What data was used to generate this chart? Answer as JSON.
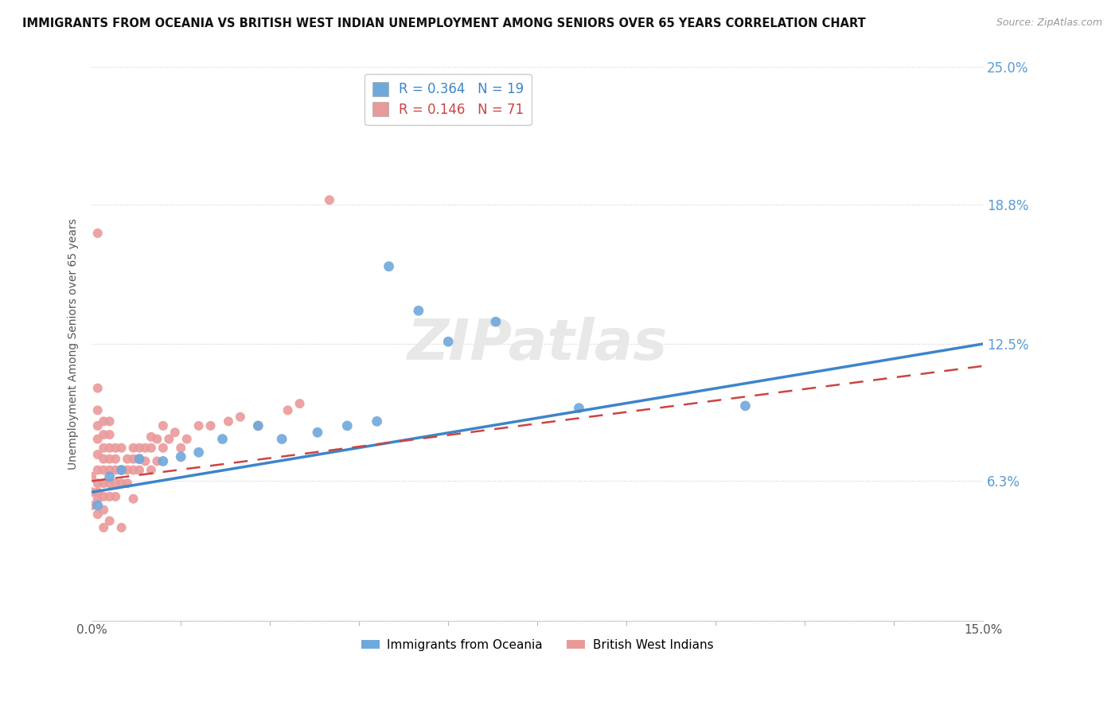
{
  "title": "IMMIGRANTS FROM OCEANIA VS BRITISH WEST INDIAN UNEMPLOYMENT AMONG SENIORS OVER 65 YEARS CORRELATION CHART",
  "source": "Source: ZipAtlas.com",
  "ylabel": "Unemployment Among Seniors over 65 years",
  "xlim": [
    0.0,
    0.15
  ],
  "ylim": [
    0.0,
    0.25
  ],
  "ytick_vals": [
    0.0,
    0.063,
    0.125,
    0.188,
    0.25
  ],
  "right_labels": [
    "",
    "6.3%",
    "12.5%",
    "18.8%",
    "25.0%"
  ],
  "legend_blue_R": "R = 0.364",
  "legend_blue_N": "N = 19",
  "legend_pink_R": "R = 0.146",
  "legend_pink_N": "N = 71",
  "blue_color": "#6fa8dc",
  "pink_color": "#ea9999",
  "trendline_blue_color": "#3d85c8",
  "trendline_pink_color": "#cc4444",
  "background_color": "#ffffff",
  "grid_color": "#dddddd",
  "blue_scatter_x": [
    0.001,
    0.003,
    0.005,
    0.008,
    0.012,
    0.015,
    0.018,
    0.022,
    0.028,
    0.032,
    0.038,
    0.043,
    0.048,
    0.055,
    0.06,
    0.068,
    0.082,
    0.11,
    0.05
  ],
  "blue_scatter_y": [
    0.052,
    0.065,
    0.068,
    0.073,
    0.072,
    0.074,
    0.076,
    0.082,
    0.088,
    0.082,
    0.085,
    0.088,
    0.09,
    0.14,
    0.126,
    0.135,
    0.096,
    0.097,
    0.16
  ],
  "pink_scatter_x": [
    0.0,
    0.0,
    0.0,
    0.001,
    0.001,
    0.001,
    0.001,
    0.001,
    0.001,
    0.001,
    0.001,
    0.001,
    0.001,
    0.002,
    0.002,
    0.002,
    0.002,
    0.002,
    0.002,
    0.002,
    0.002,
    0.002,
    0.003,
    0.003,
    0.003,
    0.003,
    0.003,
    0.003,
    0.003,
    0.003,
    0.004,
    0.004,
    0.004,
    0.004,
    0.004,
    0.005,
    0.005,
    0.005,
    0.005,
    0.006,
    0.006,
    0.006,
    0.007,
    0.007,
    0.007,
    0.007,
    0.008,
    0.008,
    0.008,
    0.009,
    0.009,
    0.01,
    0.01,
    0.01,
    0.011,
    0.011,
    0.012,
    0.012,
    0.013,
    0.014,
    0.015,
    0.016,
    0.018,
    0.02,
    0.023,
    0.025,
    0.028,
    0.033,
    0.035,
    0.04,
    0.001
  ],
  "pink_scatter_y": [
    0.052,
    0.058,
    0.065,
    0.048,
    0.055,
    0.062,
    0.068,
    0.075,
    0.082,
    0.088,
    0.095,
    0.105,
    0.058,
    0.05,
    0.056,
    0.062,
    0.068,
    0.073,
    0.078,
    0.084,
    0.09,
    0.042,
    0.045,
    0.056,
    0.062,
    0.068,
    0.073,
    0.078,
    0.084,
    0.09,
    0.056,
    0.062,
    0.068,
    0.073,
    0.078,
    0.042,
    0.062,
    0.068,
    0.078,
    0.062,
    0.068,
    0.073,
    0.055,
    0.068,
    0.073,
    0.078,
    0.068,
    0.073,
    0.078,
    0.072,
    0.078,
    0.068,
    0.078,
    0.083,
    0.072,
    0.082,
    0.078,
    0.088,
    0.082,
    0.085,
    0.078,
    0.082,
    0.088,
    0.088,
    0.09,
    0.092,
    0.088,
    0.095,
    0.098,
    0.19,
    0.175
  ],
  "trendline_blue_x0": 0.0,
  "trendline_blue_y0": 0.058,
  "trendline_blue_x1": 0.15,
  "trendline_blue_y1": 0.125,
  "trendline_pink_x0": 0.0,
  "trendline_pink_y0": 0.063,
  "trendline_pink_x1": 0.15,
  "trendline_pink_y1": 0.115
}
